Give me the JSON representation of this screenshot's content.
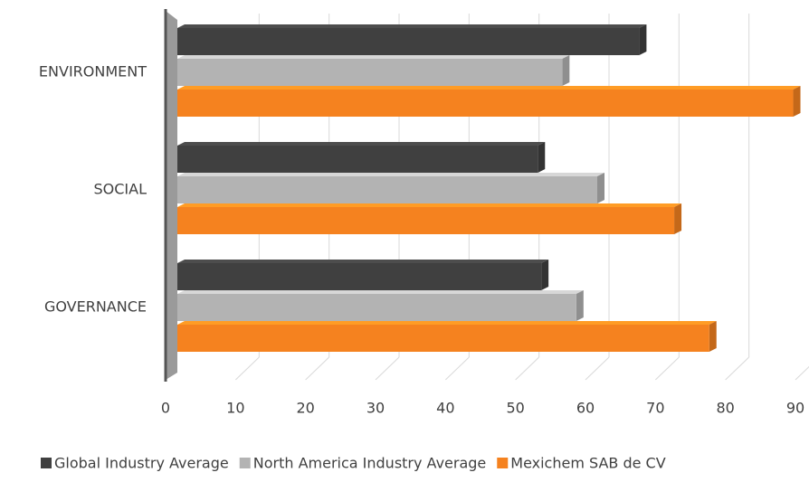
{
  "chart_data": {
    "type": "bar",
    "orientation": "horizontal",
    "categories": [
      "ENVIRONMENT",
      "SOCIAL",
      "GOVERNANCE"
    ],
    "series": [
      {
        "name": "Global Industry Average",
        "color": "#404040",
        "values": [
          66,
          51.5,
          52
        ]
      },
      {
        "name": "North America Industry Average",
        "color": "#b3b3b3",
        "values": [
          55,
          60,
          57
        ]
      },
      {
        "name": "Mexichem SAB de CV",
        "color": "#f5821f",
        "values": [
          88,
          71,
          76
        ]
      }
    ],
    "xlim": [
      0,
      90
    ],
    "xticks": [
      0,
      10,
      20,
      30,
      40,
      50,
      60,
      70,
      80,
      90
    ],
    "grid": true,
    "legend": "bottom"
  }
}
